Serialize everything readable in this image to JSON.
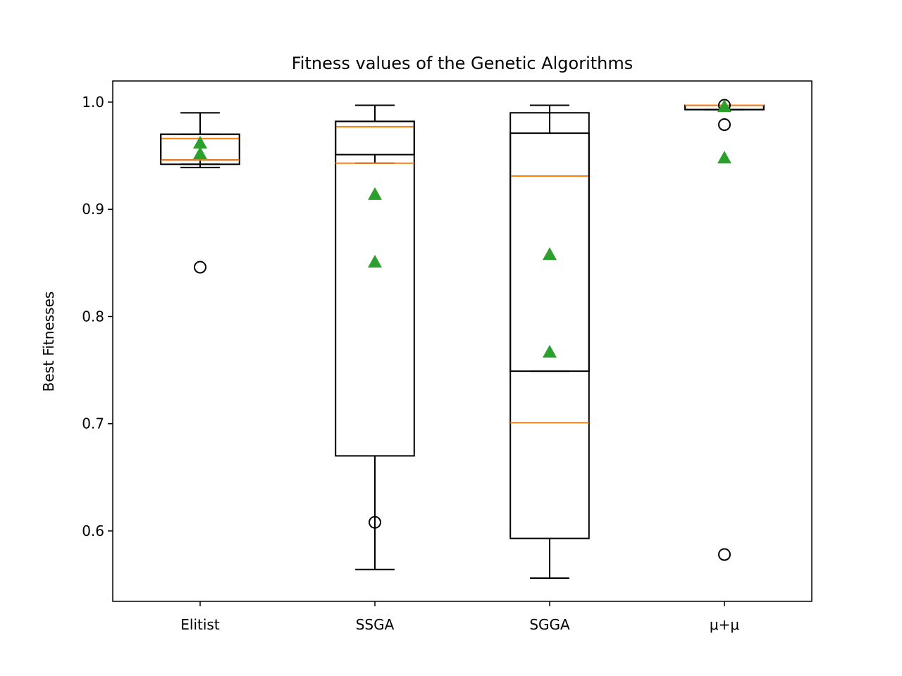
{
  "chart_data": {
    "type": "box",
    "title": "Fitness values of the Genetic Algorithms",
    "y_label": "Best Fitnesses",
    "categories": [
      "Elitist",
      "SSGA",
      "SGGA",
      "μ+μ"
    ],
    "ylim": [
      0.5343,
      1.0197
    ],
    "yticks": [
      0.6,
      0.7,
      0.8,
      0.9,
      {
        "value": 1,
        "label": "1.0"
      }
    ],
    "box_color": "#000000",
    "median_color": "#ff7f0e",
    "mean_color": "#2ca02c",
    "series": [
      {
        "boxes": [
          {
            "whislo": 0.939,
            "q1": 0.942,
            "med": 0.966,
            "q3": 0.97,
            "whishi": 0.99,
            "mean": 0.962,
            "fliers": []
          },
          {
            "whislo": 0.943,
            "q1": 0.951,
            "med": 0.977,
            "q3": 0.982,
            "whishi": 0.997,
            "mean": 0.914,
            "fliers": [
              0.608
            ]
          },
          {
            "whislo": 0.749,
            "q1": 0.749,
            "med": 0.931,
            "q3": 0.971,
            "whishi": 0.997,
            "mean": 0.858,
            "fliers": []
          },
          {
            "whislo": 0.993,
            "q1": 0.993,
            "med": 0.997,
            "q3": 0.997,
            "whishi": 0.997,
            "mean": 0.996,
            "fliers": [
              0.979,
              0.578
            ]
          }
        ]
      },
      {
        "boxes": [
          {
            "whislo": 0.942,
            "q1": 0.946,
            "med": 0.946,
            "q3": 0.97,
            "whishi": 0.97,
            "mean": 0.952,
            "fliers": [
              0.846
            ]
          },
          {
            "whislo": 0.564,
            "q1": 0.67,
            "med": 0.943,
            "q3": 0.982,
            "whishi": 0.997,
            "mean": 0.851,
            "fliers": []
          },
          {
            "whislo": 0.556,
            "q1": 0.593,
            "med": 0.701,
            "q3": 0.99,
            "whishi": 0.997,
            "mean": 0.767,
            "fliers": []
          },
          {
            "whislo": 0.993,
            "q1": 0.993,
            "med": 0.997,
            "q3": 0.997,
            "whishi": 0.997,
            "mean": 0.948,
            "fliers": [
              0.997
            ]
          }
        ]
      }
    ]
  }
}
